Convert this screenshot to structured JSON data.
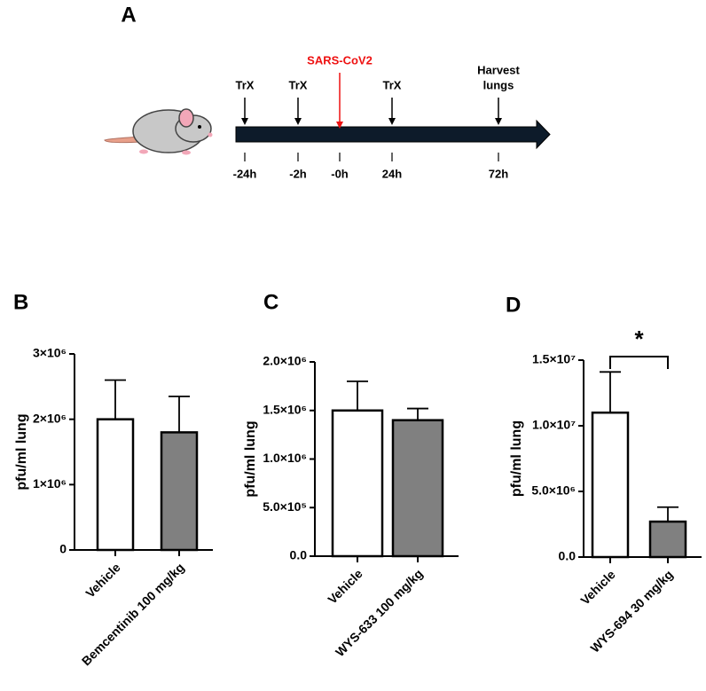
{
  "figure_label": "A",
  "timeline": {
    "events": [
      [
        "TrX"
      ],
      [
        "TrX"
      ],
      [
        "SARS-CoV2"
      ],
      [
        "TrX"
      ],
      [
        "Harvest",
        "lungs"
      ]
    ],
    "event_colors": [
      "#000000",
      "#000000",
      "#ee1111",
      "#000000",
      "#000000"
    ],
    "ticks": [
      "-24h",
      "-2h",
      "-0h",
      "24h",
      "72h"
    ]
  },
  "chart_data": [
    {
      "type": "bar",
      "panel": "B",
      "y_label": "pfu/ml lung",
      "categories": [
        "Vehicle",
        "Bemcentinib 100 mg/kg"
      ],
      "values": [
        2000000,
        1800000
      ],
      "errors": [
        600000,
        550000
      ],
      "colors": [
        "#ffffff",
        "#808080"
      ],
      "ylim": [
        0,
        3000000
      ],
      "yticks": [
        0,
        {
          "value": 1000000,
          "label": "1×10⁶"
        },
        {
          "value": 2000000,
          "label": "2×10⁶"
        },
        {
          "value": 3000000,
          "label": "3×10⁶"
        }
      ]
    },
    {
      "type": "bar",
      "panel": "C",
      "y_label": "pfu/ml lung",
      "categories": [
        "Vehicle",
        "WYS-633 100 mg/kg"
      ],
      "values": [
        1500000,
        1400000
      ],
      "errors": [
        300000,
        120000
      ],
      "colors": [
        "#ffffff",
        "#808080"
      ],
      "ylim": [
        0,
        2000000
      ],
      "yticks": [
        {
          "value": 0,
          "label": "0.0"
        },
        {
          "value": 500000,
          "label": "5.0×10⁵"
        },
        {
          "value": 1000000,
          "label": "1.0×10⁶"
        },
        {
          "value": 1500000,
          "label": "1.5×10⁶"
        },
        {
          "value": 2000000,
          "label": "2.0×10⁶"
        }
      ]
    },
    {
      "type": "bar",
      "panel": "D",
      "y_label": "pfu/ml lung",
      "categories": [
        "Vehicle",
        "WYS-694 30 mg/kg"
      ],
      "values": [
        11000000,
        2700000
      ],
      "errors": [
        3100000,
        1100000
      ],
      "colors": [
        "#ffffff",
        "#808080"
      ],
      "ylim": [
        0,
        15000000
      ],
      "yticks": [
        {
          "value": 0,
          "label": "0.0"
        },
        {
          "value": 5000000,
          "label": "5.0×10⁶"
        },
        {
          "value": 10000000,
          "label": "1.0×10⁷"
        },
        {
          "value": 15000000,
          "label": "1.5×10⁷"
        }
      ],
      "annotation": "*"
    }
  ]
}
